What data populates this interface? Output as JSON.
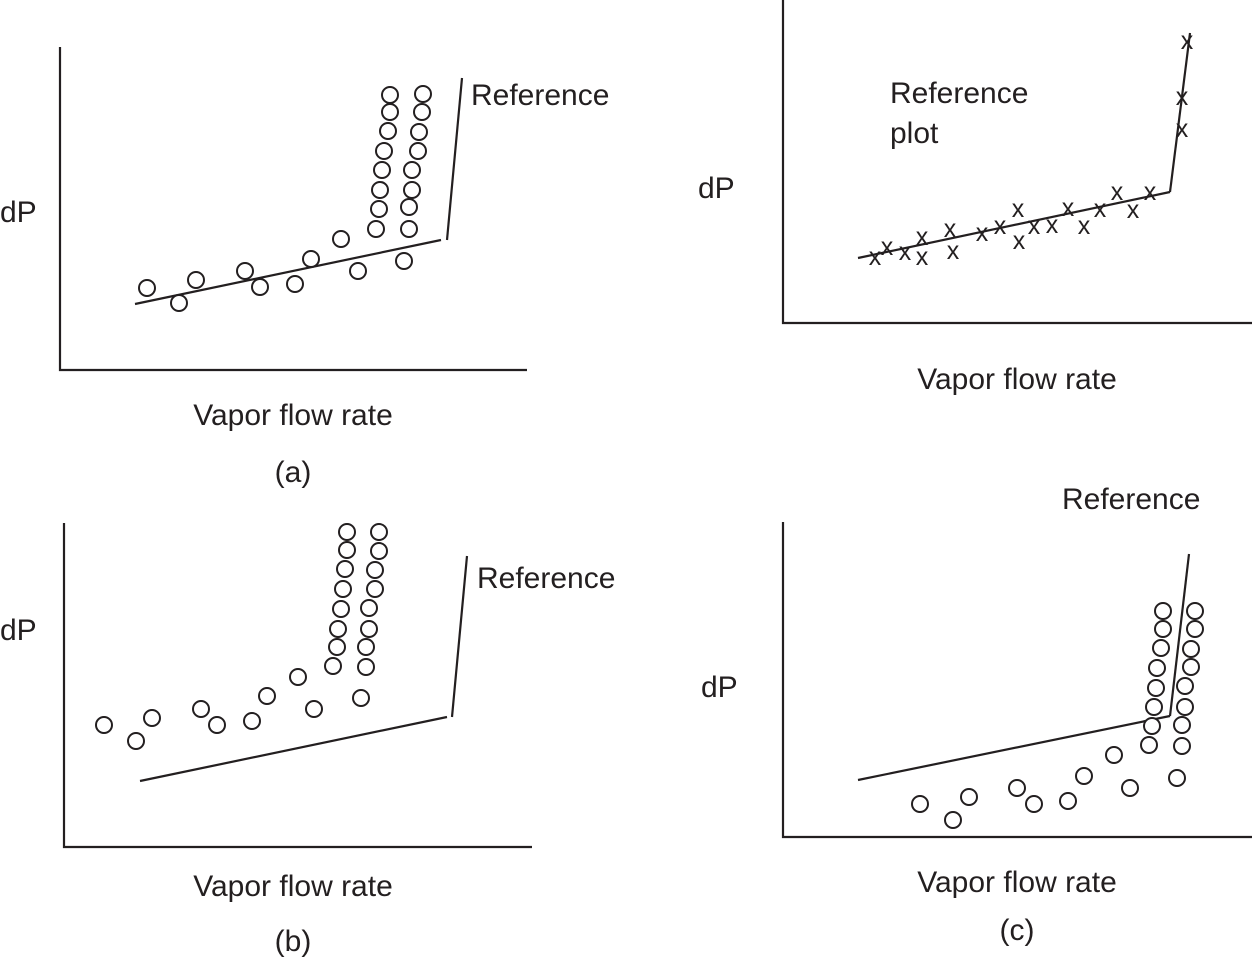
{
  "panels": {
    "a": {
      "ylabel": "dP",
      "xlabel": "Vapor flow rate",
      "caption": "(a)",
      "reference_label": "Reference"
    },
    "ref": {
      "ylabel": "dP",
      "xlabel": "Vapor flow rate",
      "reference_label_line1": "Reference",
      "reference_label_line2": "plot",
      "marker_glyph": "x"
    },
    "b": {
      "ylabel": "dP",
      "xlabel": "Vapor flow rate",
      "caption": "(b)",
      "reference_label": "Reference"
    },
    "c": {
      "ylabel": "dP",
      "xlabel": "Vapor flow rate",
      "caption": "(c)",
      "reference_label": "Reference"
    }
  },
  "colors": {
    "ink": "#231f20",
    "background": "#ffffff"
  }
}
